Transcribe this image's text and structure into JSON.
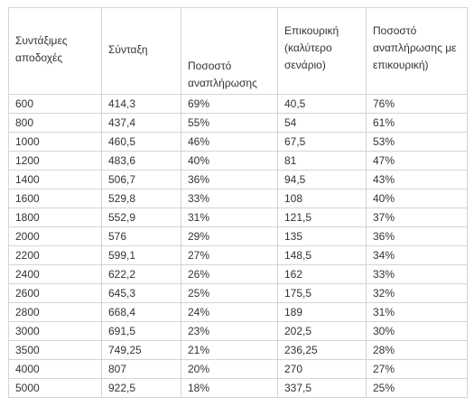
{
  "table": {
    "headers": [
      "Συντάξιμες αποδοχές",
      "Σύνταξη",
      "Ποσοστό αναπλήρωσης",
      "Επικουρική (καλύτερο σενάριο)",
      "Ποσοστό αναπλήρωσης με επικουρική)"
    ],
    "rows": [
      [
        "600",
        "414,3",
        "69%",
        "40,5",
        "76%"
      ],
      [
        "800",
        "437,4",
        "55%",
        "54",
        "61%"
      ],
      [
        "1000",
        "460,5",
        "46%",
        "67,5",
        "53%"
      ],
      [
        "1200",
        "483,6",
        "40%",
        "81",
        "47%"
      ],
      [
        "1400",
        "506,7",
        "36%",
        "94,5",
        "43%"
      ],
      [
        "1600",
        "529,8",
        "33%",
        "108",
        "40%"
      ],
      [
        "1800",
        "552,9",
        "31%",
        "121,5",
        "37%"
      ],
      [
        "2000",
        "576",
        "29%",
        "135",
        "36%"
      ],
      [
        "2200",
        "599,1",
        "27%",
        "148,5",
        "34%"
      ],
      [
        "2400",
        "622,2",
        "26%",
        "162",
        "33%"
      ],
      [
        "2600",
        "645,3",
        "25%",
        "175,5",
        "32%"
      ],
      [
        "2800",
        "668,4",
        "24%",
        "189",
        "31%"
      ],
      [
        "3000",
        "691,5",
        "23%",
        "202,5",
        "30%"
      ],
      [
        "3500",
        "749,25",
        "21%",
        "236,25",
        "28%"
      ],
      [
        "4000",
        "807",
        "20%",
        "270",
        "27%"
      ],
      [
        "5000",
        "922,5",
        "18%",
        "337,5",
        "25%"
      ]
    ]
  }
}
